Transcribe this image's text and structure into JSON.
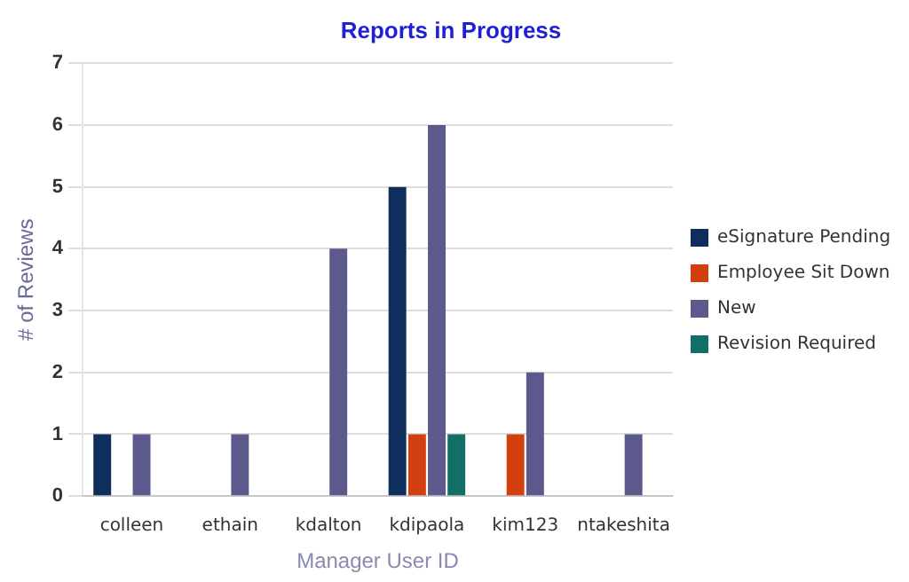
{
  "chart_data": {
    "type": "bar",
    "title": "Reports in Progress",
    "xlabel": "Manager User ID",
    "ylabel": "# of Reviews",
    "categories": [
      "colleen",
      "ethain",
      "kdalton",
      "kdipaola",
      "kim123",
      "ntakeshita"
    ],
    "series": [
      {
        "name": "eSignature Pending",
        "color": "#0e2f5c",
        "values": [
          1,
          0,
          0,
          5,
          0,
          0
        ]
      },
      {
        "name": "Employee Sit Down",
        "color": "#d2400f",
        "values": [
          0,
          0,
          0,
          1,
          1,
          0
        ]
      },
      {
        "name": "New",
        "color": "#5c5a8c",
        "values": [
          1,
          1,
          4,
          6,
          2,
          1
        ]
      },
      {
        "name": "Revision Required",
        "color": "#136e66",
        "values": [
          0,
          0,
          0,
          1,
          0,
          0
        ]
      }
    ],
    "ylim": [
      0,
      7
    ],
    "yticks": [
      0,
      1,
      2,
      3,
      4,
      5,
      6,
      7
    ],
    "grid": "y",
    "legend": "right"
  }
}
